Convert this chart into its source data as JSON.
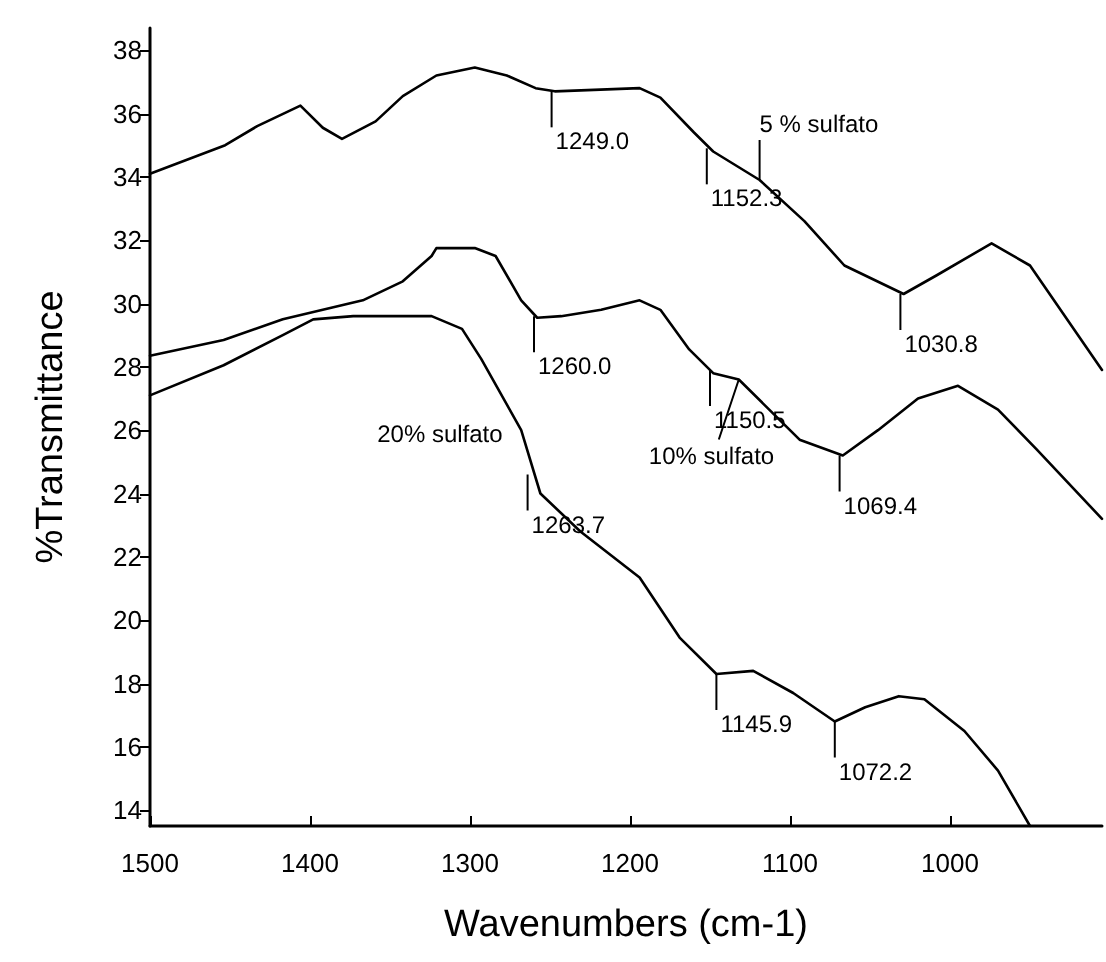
{
  "chart_data": {
    "type": "line",
    "xlabel": "Wavenumbers (cm-1)",
    "ylabel": "%Transmittance",
    "xlim": [
      1500,
      905
    ],
    "xticks": [
      1500,
      1400,
      1300,
      1200,
      1100,
      1000
    ],
    "ylim": [
      13.5,
      38.7
    ],
    "yticks": [
      14,
      16,
      18,
      20,
      22,
      24,
      26,
      28,
      30,
      32,
      34,
      36,
      38
    ],
    "grid": false,
    "legend": false,
    "marker": "none",
    "line_style": "solid",
    "series": [
      {
        "name": "5 % sulfato",
        "color": "#000000",
        "x": [
          1500,
          1453,
          1433,
          1406,
          1392,
          1380,
          1359,
          1342,
          1321,
          1297,
          1277,
          1259,
          1247,
          1194,
          1181,
          1160,
          1148,
          1119,
          1091,
          1066,
          1029,
          1008,
          974,
          950,
          905
        ],
        "values": [
          34.1,
          35.0,
          35.6,
          36.25,
          35.55,
          35.2,
          35.75,
          36.55,
          37.2,
          37.45,
          37.2,
          36.8,
          36.7,
          36.8,
          36.5,
          35.4,
          34.8,
          33.9,
          32.6,
          31.2,
          30.3,
          30.9,
          31.9,
          31.2,
          27.9
        ]
      },
      {
        "name": "10% sulfato",
        "color": "#000000",
        "x": [
          1500,
          1454,
          1417,
          1392,
          1367,
          1342,
          1324,
          1321,
          1297,
          1284,
          1268,
          1258,
          1243,
          1218,
          1194,
          1181,
          1163,
          1148,
          1132,
          1113,
          1094,
          1067,
          1045,
          1020,
          995,
          970,
          946,
          905
        ],
        "values": [
          28.35,
          28.85,
          29.5,
          29.8,
          30.1,
          30.7,
          31.5,
          31.75,
          31.75,
          31.5,
          30.1,
          29.55,
          29.6,
          29.8,
          30.1,
          29.8,
          28.55,
          27.8,
          27.6,
          26.65,
          25.7,
          25.2,
          26.0,
          27.0,
          27.4,
          26.65,
          25.4,
          23.2
        ]
      },
      {
        "name": "20% sulfato",
        "color": "#000000",
        "x": [
          1500,
          1454,
          1417,
          1398,
          1373,
          1324,
          1305,
          1293,
          1268,
          1256,
          1231,
          1194,
          1169,
          1146,
          1123,
          1098,
          1072,
          1053,
          1032,
          1016,
          991,
          970,
          950
        ],
        "values": [
          27.1,
          28.05,
          29.0,
          29.5,
          29.6,
          29.6,
          29.2,
          28.25,
          26.0,
          24.0,
          22.8,
          21.35,
          19.45,
          18.3,
          18.4,
          17.7,
          16.8,
          17.25,
          17.6,
          17.5,
          16.5,
          15.25,
          13.5
        ]
      }
    ],
    "annotations": [
      {
        "text": "1249.0",
        "x": 1249,
        "y": 36.7
      },
      {
        "text": "1152.3",
        "x": 1152,
        "y": 34.9
      },
      {
        "text": "1030.8",
        "x": 1031,
        "y": 30.3
      },
      {
        "text": "1260.0",
        "x": 1260,
        "y": 29.6
      },
      {
        "text": "1150.5",
        "x": 1150,
        "y": 27.9
      },
      {
        "text": "1069.4",
        "x": 1069,
        "y": 25.2
      },
      {
        "text": "1263.7",
        "x": 1264,
        "y": 24.6
      },
      {
        "text": "1145.9",
        "x": 1146,
        "y": 18.3
      },
      {
        "text": "1072.2",
        "x": 1072,
        "y": 16.8
      }
    ]
  }
}
